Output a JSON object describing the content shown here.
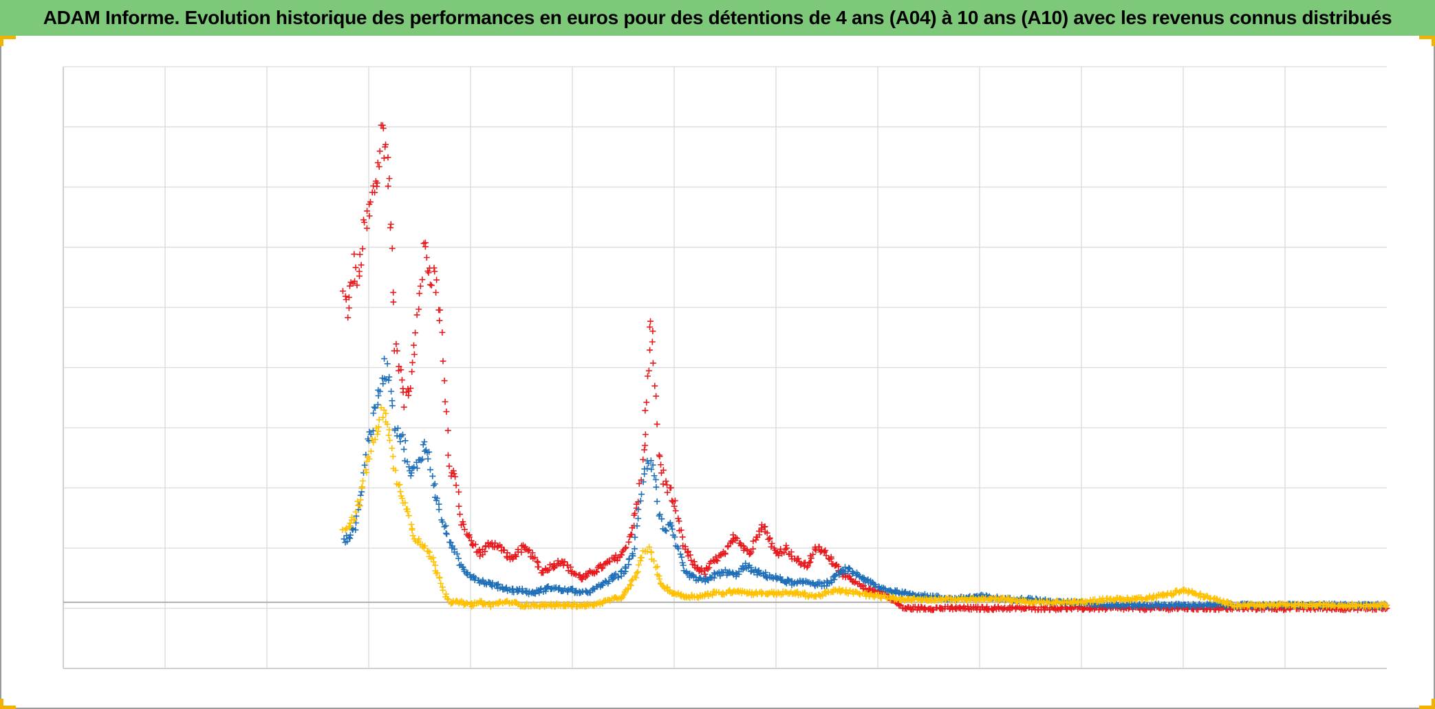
{
  "title": "ADAM Informe. Evolution historique des performances en euros pour des détentions de 4 ans (A04) à 10 ans (A10) avec les revenus connus distribués",
  "chart_data": {
    "type": "scatter",
    "title": "ADAM Informe. Evolution historique des performances en euros pour des détentions de 4 ans (A04) à 10 ans (A10) avec les revenus connus distribués",
    "xlabel": "",
    "ylabel": "",
    "tick_labels_visible": false,
    "grid": true,
    "legend": "none",
    "marker": "+",
    "xlim": [
      0,
      13
    ],
    "ylim": [
      -1.1,
      8.9
    ],
    "x_gridlines": 13,
    "y_gridlines": 10,
    "zero_line": 0,
    "series": [
      {
        "color": "#e8191c",
        "points": [
          [
            2.75,
            5.1
          ],
          [
            2.8,
            4.8
          ],
          [
            2.85,
            5.6
          ],
          [
            2.9,
            5.3
          ],
          [
            2.95,
            6.1
          ],
          [
            3.0,
            6.4
          ],
          [
            3.05,
            6.8
          ],
          [
            3.1,
            7.2
          ],
          [
            3.13,
            7.9
          ],
          [
            3.18,
            7.4
          ],
          [
            3.22,
            6.2
          ],
          [
            3.25,
            4.3
          ],
          [
            3.3,
            4.0
          ],
          [
            3.35,
            3.4
          ],
          [
            3.4,
            3.5
          ],
          [
            3.45,
            4.2
          ],
          [
            3.5,
            5.2
          ],
          [
            3.55,
            5.9
          ],
          [
            3.6,
            5.5
          ],
          [
            3.65,
            5.4
          ],
          [
            3.7,
            4.8
          ],
          [
            3.75,
            3.4
          ],
          [
            3.8,
            2.2
          ],
          [
            3.85,
            2.1
          ],
          [
            3.9,
            1.4
          ],
          [
            4.0,
            1.0
          ],
          [
            4.1,
            0.8
          ],
          [
            4.2,
            1.0
          ],
          [
            4.3,
            0.9
          ],
          [
            4.4,
            0.7
          ],
          [
            4.5,
            0.9
          ],
          [
            4.6,
            0.8
          ],
          [
            4.7,
            0.5
          ],
          [
            4.8,
            0.6
          ],
          [
            4.9,
            0.7
          ],
          [
            5.0,
            0.5
          ],
          [
            5.1,
            0.4
          ],
          [
            5.2,
            0.5
          ],
          [
            5.3,
            0.6
          ],
          [
            5.4,
            0.7
          ],
          [
            5.5,
            0.8
          ],
          [
            5.6,
            1.3
          ],
          [
            5.65,
            1.7
          ],
          [
            5.7,
            2.5
          ],
          [
            5.73,
            3.3
          ],
          [
            5.76,
            4.6
          ],
          [
            5.8,
            4.1
          ],
          [
            5.85,
            2.5
          ],
          [
            5.9,
            2.0
          ],
          [
            5.95,
            1.9
          ],
          [
            6.0,
            1.6
          ],
          [
            6.1,
            0.9
          ],
          [
            6.2,
            0.6
          ],
          [
            6.3,
            0.5
          ],
          [
            6.4,
            0.7
          ],
          [
            6.5,
            0.8
          ],
          [
            6.6,
            1.1
          ],
          [
            6.7,
            0.9
          ],
          [
            6.75,
            0.8
          ],
          [
            6.85,
            1.3
          ],
          [
            6.9,
            1.2
          ],
          [
            7.0,
            0.8
          ],
          [
            7.1,
            0.9
          ],
          [
            7.2,
            0.7
          ],
          [
            7.3,
            0.6
          ],
          [
            7.4,
            0.9
          ],
          [
            7.5,
            0.8
          ],
          [
            7.6,
            0.6
          ],
          [
            7.7,
            0.4
          ],
          [
            7.8,
            0.3
          ],
          [
            7.9,
            0.2
          ],
          [
            8.0,
            0.2
          ],
          [
            8.1,
            0.1
          ],
          [
            8.25,
            -0.1
          ],
          [
            8.5,
            -0.1
          ],
          [
            9.0,
            -0.1
          ],
          [
            9.5,
            -0.1
          ],
          [
            10.0,
            -0.1
          ],
          [
            10.5,
            -0.1
          ],
          [
            11.0,
            -0.1
          ],
          [
            11.5,
            -0.1
          ],
          [
            12.0,
            -0.1
          ],
          [
            12.5,
            -0.1
          ],
          [
            13.0,
            -0.1
          ]
        ]
      },
      {
        "color": "#1f6fb8",
        "points": [
          [
            2.75,
            1.0
          ],
          [
            2.8,
            1.1
          ],
          [
            2.85,
            1.2
          ],
          [
            2.9,
            1.5
          ],
          [
            2.95,
            2.1
          ],
          [
            3.0,
            2.8
          ],
          [
            3.05,
            3.0
          ],
          [
            3.1,
            3.5
          ],
          [
            3.15,
            3.9
          ],
          [
            3.2,
            3.8
          ],
          [
            3.25,
            3.0
          ],
          [
            3.3,
            2.8
          ],
          [
            3.35,
            2.6
          ],
          [
            3.4,
            2.1
          ],
          [
            3.45,
            2.2
          ],
          [
            3.5,
            2.4
          ],
          [
            3.55,
            2.6
          ],
          [
            3.6,
            2.4
          ],
          [
            3.65,
            1.9
          ],
          [
            3.7,
            1.5
          ],
          [
            3.75,
            1.2
          ],
          [
            3.8,
            1.0
          ],
          [
            3.85,
            0.8
          ],
          [
            3.9,
            0.6
          ],
          [
            4.0,
            0.45
          ],
          [
            4.1,
            0.35
          ],
          [
            4.2,
            0.3
          ],
          [
            4.3,
            0.25
          ],
          [
            4.4,
            0.2
          ],
          [
            4.5,
            0.2
          ],
          [
            4.6,
            0.15
          ],
          [
            4.7,
            0.2
          ],
          [
            4.8,
            0.25
          ],
          [
            4.9,
            0.2
          ],
          [
            5.0,
            0.2
          ],
          [
            5.1,
            0.15
          ],
          [
            5.2,
            0.2
          ],
          [
            5.3,
            0.3
          ],
          [
            5.4,
            0.4
          ],
          [
            5.5,
            0.5
          ],
          [
            5.6,
            0.8
          ],
          [
            5.65,
            1.5
          ],
          [
            5.7,
            2.2
          ],
          [
            5.75,
            2.4
          ],
          [
            5.8,
            2.2
          ],
          [
            5.85,
            1.5
          ],
          [
            5.9,
            1.2
          ],
          [
            5.95,
            1.3
          ],
          [
            6.0,
            1.1
          ],
          [
            6.1,
            0.5
          ],
          [
            6.2,
            0.4
          ],
          [
            6.3,
            0.35
          ],
          [
            6.4,
            0.45
          ],
          [
            6.5,
            0.5
          ],
          [
            6.6,
            0.45
          ],
          [
            6.7,
            0.6
          ],
          [
            6.8,
            0.5
          ],
          [
            6.9,
            0.45
          ],
          [
            7.0,
            0.4
          ],
          [
            7.1,
            0.35
          ],
          [
            7.2,
            0.3
          ],
          [
            7.3,
            0.35
          ],
          [
            7.4,
            0.3
          ],
          [
            7.5,
            0.3
          ],
          [
            7.6,
            0.45
          ],
          [
            7.7,
            0.55
          ],
          [
            7.8,
            0.45
          ],
          [
            7.9,
            0.35
          ],
          [
            8.0,
            0.25
          ],
          [
            8.1,
            0.2
          ],
          [
            8.25,
            0.15
          ],
          [
            8.5,
            0.1
          ],
          [
            8.75,
            0.05
          ],
          [
            9.0,
            0.1
          ],
          [
            9.25,
            0.05
          ],
          [
            9.5,
            0.05
          ],
          [
            9.75,
            0.0
          ],
          [
            10.0,
            0.0
          ],
          [
            10.25,
            -0.05
          ],
          [
            10.5,
            -0.05
          ],
          [
            10.75,
            -0.05
          ],
          [
            11.0,
            -0.05
          ],
          [
            11.5,
            -0.05
          ],
          [
            12.0,
            -0.05
          ],
          [
            12.5,
            -0.05
          ],
          [
            13.0,
            -0.05
          ]
        ]
      },
      {
        "color": "#ffc000",
        "points": [
          [
            2.75,
            1.2
          ],
          [
            2.8,
            1.3
          ],
          [
            2.85,
            1.4
          ],
          [
            2.9,
            1.6
          ],
          [
            2.95,
            2.0
          ],
          [
            3.0,
            2.4
          ],
          [
            3.05,
            2.7
          ],
          [
            3.1,
            2.9
          ],
          [
            3.15,
            3.3
          ],
          [
            3.2,
            2.8
          ],
          [
            3.25,
            2.2
          ],
          [
            3.3,
            1.9
          ],
          [
            3.35,
            1.7
          ],
          [
            3.4,
            1.4
          ],
          [
            3.45,
            1.1
          ],
          [
            3.5,
            1.0
          ],
          [
            3.55,
            0.9
          ],
          [
            3.6,
            0.8
          ],
          [
            3.65,
            0.6
          ],
          [
            3.7,
            0.4
          ],
          [
            3.75,
            0.15
          ],
          [
            3.8,
            0.0
          ],
          [
            3.9,
            0.0
          ],
          [
            4.0,
            -0.05
          ],
          [
            4.1,
            0.0
          ],
          [
            4.2,
            -0.05
          ],
          [
            4.3,
            0.0
          ],
          [
            4.4,
            0.0
          ],
          [
            4.5,
            -0.05
          ],
          [
            4.6,
            -0.05
          ],
          [
            4.7,
            -0.05
          ],
          [
            4.8,
            -0.05
          ],
          [
            4.9,
            -0.05
          ],
          [
            5.0,
            -0.05
          ],
          [
            5.1,
            -0.05
          ],
          [
            5.2,
            -0.05
          ],
          [
            5.3,
            0.0
          ],
          [
            5.4,
            0.05
          ],
          [
            5.5,
            0.1
          ],
          [
            5.6,
            0.35
          ],
          [
            5.7,
            0.8
          ],
          [
            5.75,
            0.9
          ],
          [
            5.8,
            0.7
          ],
          [
            5.85,
            0.4
          ],
          [
            5.9,
            0.25
          ],
          [
            6.0,
            0.15
          ],
          [
            6.1,
            0.1
          ],
          [
            6.25,
            0.1
          ],
          [
            6.4,
            0.15
          ],
          [
            6.5,
            0.15
          ],
          [
            6.6,
            0.2
          ],
          [
            6.75,
            0.15
          ],
          [
            6.9,
            0.15
          ],
          [
            7.0,
            0.15
          ],
          [
            7.2,
            0.15
          ],
          [
            7.4,
            0.1
          ],
          [
            7.6,
            0.2
          ],
          [
            7.8,
            0.15
          ],
          [
            8.0,
            0.1
          ],
          [
            8.25,
            0.05
          ],
          [
            8.5,
            0.05
          ],
          [
            8.75,
            0.05
          ],
          [
            9.0,
            0.05
          ],
          [
            9.25,
            0.05
          ],
          [
            9.5,
            0.0
          ],
          [
            9.75,
            0.0
          ],
          [
            10.0,
            0.0
          ],
          [
            10.25,
            0.05
          ],
          [
            10.5,
            0.05
          ],
          [
            10.75,
            0.1
          ],
          [
            10.9,
            0.15
          ],
          [
            11.0,
            0.2
          ],
          [
            11.1,
            0.15
          ],
          [
            11.2,
            0.1
          ],
          [
            11.3,
            0.05
          ],
          [
            11.5,
            -0.05
          ],
          [
            12.0,
            -0.05
          ],
          [
            12.5,
            -0.05
          ],
          [
            13.0,
            -0.05
          ]
        ]
      }
    ]
  }
}
